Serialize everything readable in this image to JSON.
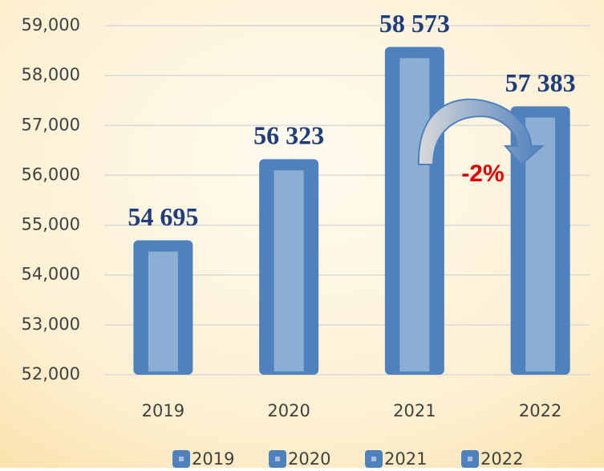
{
  "chart_data": {
    "type": "bar",
    "categories": [
      "2019",
      "2020",
      "2021",
      "2022"
    ],
    "values": [
      54695,
      56323,
      58573,
      57383
    ],
    "value_labels": [
      "54 695",
      "56 323",
      "58 573",
      "57 383"
    ],
    "color": "#4f81bd",
    "ylim": [
      52000,
      59000
    ],
    "yticks": [
      {
        "value": 52000,
        "label": "52,000"
      },
      {
        "value": 53000,
        "label": "53,000"
      },
      {
        "value": 54000,
        "label": "54,000"
      },
      {
        "value": 55000,
        "label": "55,000"
      },
      {
        "value": 56000,
        "label": "56,000"
      },
      {
        "value": 57000,
        "label": "57,000"
      },
      {
        "value": 58000,
        "label": "58,000"
      },
      {
        "value": 59000,
        "label": "59,000"
      }
    ],
    "grid": true,
    "annotation": "-2%",
    "legend": "bottom"
  }
}
